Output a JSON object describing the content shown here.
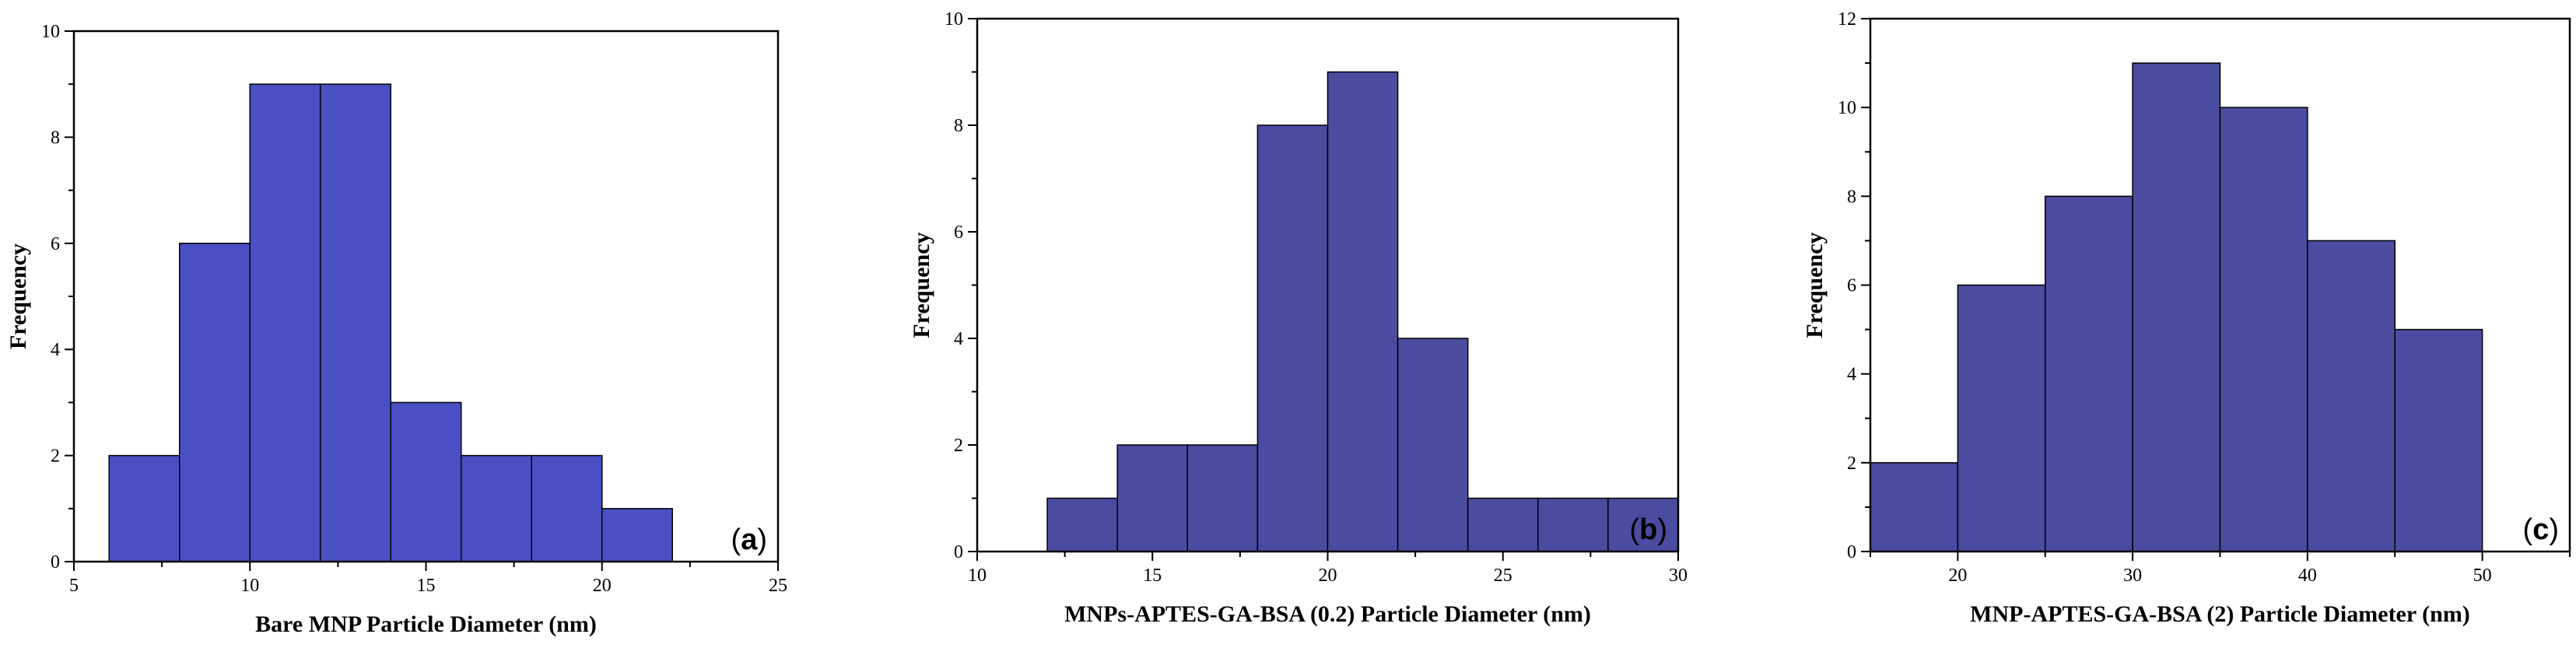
{
  "chart_data": [
    {
      "type": "bar",
      "panel_label": "a",
      "xlabel": "Bare MNP Particle Diameter (nm)",
      "ylabel": "Frequency",
      "xlim": [
        5,
        25
      ],
      "ylim": [
        0,
        10
      ],
      "xticks": [
        5,
        10,
        15,
        20,
        25
      ],
      "yticks": [
        0,
        2,
        4,
        6,
        8,
        10
      ],
      "bin_edges": [
        6,
        8,
        10,
        12,
        14,
        16,
        18,
        20,
        22
      ],
      "values": [
        2,
        6,
        9,
        9,
        3,
        2,
        2,
        1
      ],
      "bar_color": "#4B4FC4"
    },
    {
      "type": "bar",
      "panel_label": "b",
      "xlabel": "MNPs-APTES-GA-BSA (0.2) Particle Diameter (nm)",
      "ylabel": "Frequency",
      "xlim": [
        10,
        30
      ],
      "ylim": [
        0,
        10
      ],
      "xticks": [
        10,
        15,
        20,
        25,
        30
      ],
      "yticks": [
        0,
        2,
        4,
        6,
        8,
        10
      ],
      "bin_edges": [
        12,
        14,
        16,
        18,
        20,
        22,
        24,
        26,
        28,
        30
      ],
      "values": [
        1,
        2,
        2,
        8,
        9,
        4,
        1,
        1,
        1
      ],
      "bar_color": "#4A4C9F"
    },
    {
      "type": "bar",
      "panel_label": "c",
      "xlabel": "MNP-APTES-GA-BSA (2) Particle Diameter (nm)",
      "ylabel": "Frequency",
      "xlim": [
        15,
        55
      ],
      "ylim": [
        0,
        12
      ],
      "xticks": [
        20,
        30,
        40,
        50
      ],
      "yticks": [
        0,
        2,
        4,
        6,
        8,
        10,
        12
      ],
      "bin_edges": [
        15,
        20,
        25,
        30,
        35,
        40,
        45,
        50
      ],
      "values": [
        2,
        6,
        8,
        11,
        10,
        7,
        5
      ],
      "bar_color": "#4A4C9F"
    }
  ]
}
